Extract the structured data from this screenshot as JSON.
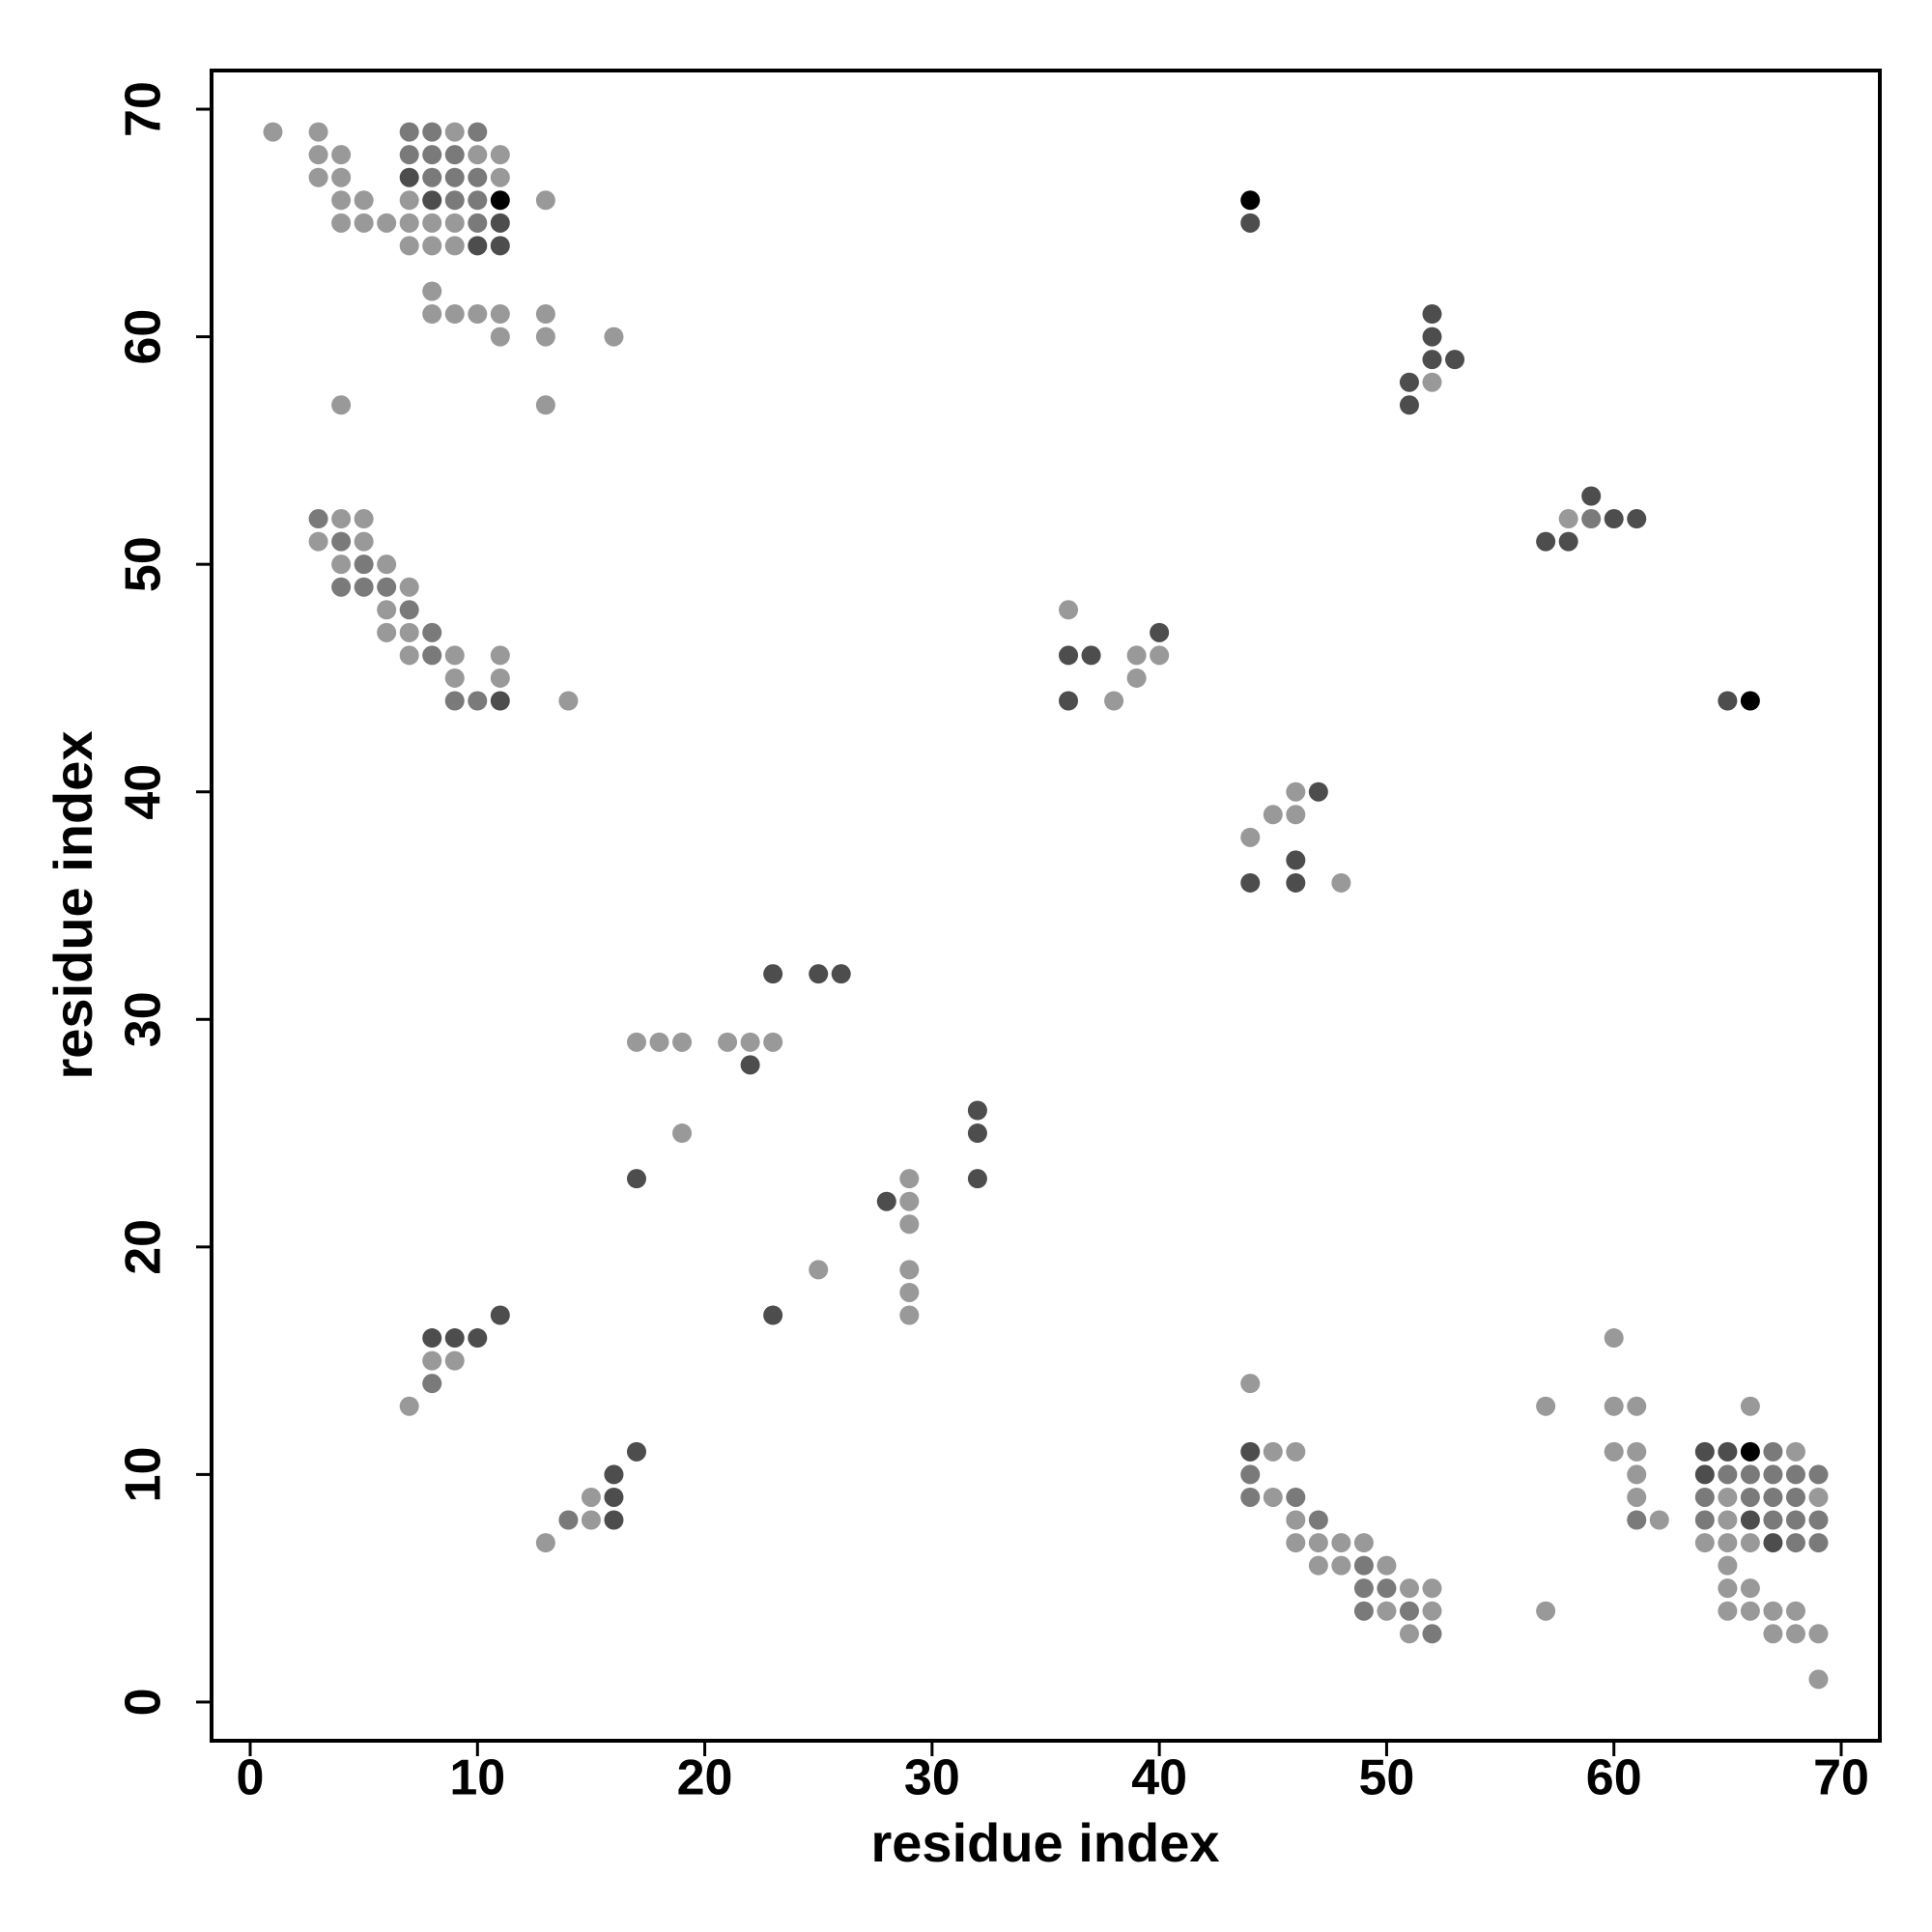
{
  "chart_data": {
    "type": "scatter",
    "xlabel": "residue index",
    "ylabel": "residue index",
    "xlim": [
      -1.7,
      71.7
    ],
    "ylim": [
      -1.7,
      71.7
    ],
    "xticks": [
      0,
      10,
      20,
      30,
      40,
      50,
      60,
      70
    ],
    "yticks": [
      0,
      10,
      20,
      30,
      40,
      50,
      60,
      70
    ],
    "x": [
      1,
      3,
      7,
      8,
      9,
      10,
      3,
      4,
      7,
      8,
      9,
      10,
      11,
      3,
      4,
      7,
      8,
      9,
      10,
      11,
      4,
      5,
      7,
      8,
      9,
      10,
      11,
      13,
      44,
      4,
      5,
      6,
      7,
      8,
      9,
      10,
      11,
      44,
      7,
      8,
      9,
      10,
      11,
      8,
      8,
      9,
      10,
      11,
      13,
      52,
      11,
      13,
      16,
      52,
      52,
      53,
      51,
      52,
      4,
      13,
      51,
      59,
      3,
      4,
      5,
      58,
      59,
      60,
      61,
      3,
      4,
      5,
      57,
      58,
      4,
      5,
      6,
      4,
      5,
      6,
      7,
      6,
      7,
      36,
      6,
      7,
      8,
      40,
      7,
      8,
      9,
      11,
      36,
      37,
      39,
      40,
      9,
      11,
      39,
      9,
      10,
      11,
      14,
      36,
      38,
      65,
      66,
      46,
      47,
      45,
      46,
      44,
      46,
      44,
      46,
      48,
      23,
      25,
      26,
      17,
      18,
      19,
      21,
      22,
      23,
      22,
      32,
      19,
      32,
      17,
      29,
      32,
      28,
      29,
      29,
      25,
      29,
      29,
      11,
      23,
      29,
      8,
      9,
      10,
      60,
      8,
      9,
      8,
      44,
      7,
      57,
      60,
      61,
      66,
      17,
      44,
      45,
      46,
      60,
      61,
      64,
      65,
      66,
      67,
      68,
      16,
      44,
      61,
      64,
      65,
      66,
      67,
      68,
      69,
      15,
      16,
      44,
      45,
      46,
      61,
      64,
      65,
      66,
      67,
      68,
      69,
      14,
      15,
      16,
      46,
      47,
      61,
      62,
      64,
      65,
      66,
      67,
      68,
      69,
      13,
      46,
      47,
      48,
      49,
      64,
      65,
      66,
      67,
      68,
      69,
      47,
      48,
      49,
      50,
      65,
      49,
      50,
      51,
      52,
      65,
      66,
      49,
      50,
      51,
      52,
      57,
      65,
      66,
      67,
      68,
      51,
      52,
      67,
      68,
      69,
      69
    ],
    "y": [
      69,
      69,
      69,
      69,
      69,
      69,
      68,
      68,
      68,
      68,
      68,
      68,
      68,
      67,
      67,
      67,
      67,
      67,
      67,
      67,
      66,
      66,
      66,
      66,
      66,
      66,
      66,
      66,
      66,
      65,
      65,
      65,
      65,
      65,
      65,
      65,
      65,
      65,
      64,
      64,
      64,
      64,
      64,
      62,
      61,
      61,
      61,
      61,
      61,
      61,
      60,
      60,
      60,
      60,
      59,
      59,
      58,
      58,
      57,
      57,
      57,
      53,
      52,
      52,
      52,
      52,
      52,
      52,
      52,
      51,
      51,
      51,
      51,
      51,
      50,
      50,
      50,
      49,
      49,
      49,
      49,
      48,
      48,
      48,
      47,
      47,
      47,
      47,
      46,
      46,
      46,
      46,
      46,
      46,
      46,
      46,
      45,
      45,
      45,
      44,
      44,
      44,
      44,
      44,
      44,
      44,
      44,
      40,
      40,
      39,
      39,
      38,
      37,
      36,
      36,
      36,
      32,
      32,
      32,
      29,
      29,
      29,
      29,
      29,
      29,
      28,
      26,
      25,
      25,
      23,
      23,
      23,
      22,
      22,
      21,
      19,
      19,
      18,
      17,
      17,
      17,
      16,
      16,
      16,
      16,
      15,
      15,
      14,
      14,
      13,
      13,
      13,
      13,
      13,
      11,
      11,
      11,
      11,
      11,
      11,
      11,
      11,
      11,
      11,
      11,
      10,
      10,
      10,
      10,
      10,
      10,
      10,
      10,
      10,
      9,
      9,
      9,
      9,
      9,
      9,
      9,
      9,
      9,
      9,
      9,
      9,
      8,
      8,
      8,
      8,
      8,
      8,
      8,
      8,
      8,
      8,
      8,
      8,
      8,
      7,
      7,
      7,
      7,
      7,
      7,
      7,
      7,
      7,
      7,
      7,
      6,
      6,
      6,
      6,
      6,
      5,
      5,
      5,
      5,
      5,
      5,
      4,
      4,
      4,
      4,
      4,
      4,
      4,
      4,
      4,
      3,
      3,
      3,
      3,
      3,
      1
    ],
    "colors": [
      "#999999",
      "#999999",
      "#7a7a7a",
      "#7a7a7a",
      "#999999",
      "#7a7a7a",
      "#999999",
      "#999999",
      "#7a7a7a",
      "#7a7a7a",
      "#7a7a7a",
      "#999999",
      "#999999",
      "#999999",
      "#999999",
      "#4d4d4d",
      "#7a7a7a",
      "#7a7a7a",
      "#7a7a7a",
      "#999999",
      "#999999",
      "#999999",
      "#999999",
      "#4d4d4d",
      "#7a7a7a",
      "#7a7a7a",
      "#000000",
      "#999999",
      "#000000",
      "#999999",
      "#999999",
      "#999999",
      "#999999",
      "#999999",
      "#999999",
      "#7a7a7a",
      "#4d4d4d",
      "#4d4d4d",
      "#999999",
      "#999999",
      "#999999",
      "#4d4d4d",
      "#4d4d4d",
      "#999999",
      "#999999",
      "#999999",
      "#999999",
      "#999999",
      "#999999",
      "#4d4d4d",
      "#999999",
      "#999999",
      "#999999",
      "#4d4d4d",
      "#4d4d4d",
      "#4d4d4d",
      "#4d4d4d",
      "#999999",
      "#999999",
      "#999999",
      "#4d4d4d",
      "#4d4d4d",
      "#7a7a7a",
      "#999999",
      "#999999",
      "#999999",
      "#7a7a7a",
      "#4d4d4d",
      "#4d4d4d",
      "#999999",
      "#7a7a7a",
      "#999999",
      "#4d4d4d",
      "#4d4d4d",
      "#999999",
      "#7a7a7a",
      "#999999",
      "#7a7a7a",
      "#7a7a7a",
      "#7a7a7a",
      "#999999",
      "#999999",
      "#7a7a7a",
      "#999999",
      "#999999",
      "#999999",
      "#7a7a7a",
      "#4d4d4d",
      "#999999",
      "#7a7a7a",
      "#999999",
      "#999999",
      "#4d4d4d",
      "#4d4d4d",
      "#999999",
      "#999999",
      "#999999",
      "#999999",
      "#999999",
      "#7a7a7a",
      "#7a7a7a",
      "#4d4d4d",
      "#999999",
      "#4d4d4d",
      "#999999",
      "#4d4d4d",
      "#000000",
      "#999999",
      "#4d4d4d",
      "#999999",
      "#999999",
      "#999999",
      "#4d4d4d",
      "#4d4d4d",
      "#4d4d4d",
      "#999999",
      "#4d4d4d",
      "#4d4d4d",
      "#4d4d4d",
      "#999999",
      "#999999",
      "#999999",
      "#999999",
      "#999999",
      "#999999",
      "#4d4d4d",
      "#4d4d4d",
      "#999999",
      "#4d4d4d",
      "#4d4d4d",
      "#999999",
      "#4d4d4d",
      "#4d4d4d",
      "#999999",
      "#999999",
      "#999999",
      "#999999",
      "#999999",
      "#4d4d4d",
      "#4d4d4d",
      "#999999",
      "#4d4d4d",
      "#4d4d4d",
      "#4d4d4d",
      "#999999",
      "#999999",
      "#999999",
      "#7a7a7a",
      "#999999",
      "#999999",
      "#999999",
      "#999999",
      "#999999",
      "#999999",
      "#4d4d4d",
      "#4d4d4d",
      "#999999",
      "#999999",
      "#999999",
      "#999999",
      "#4d4d4d",
      "#4d4d4d",
      "#000000",
      "#7a7a7a",
      "#999999",
      "#4d4d4d",
      "#7a7a7a",
      "#999999",
      "#4d4d4d",
      "#7a7a7a",
      "#7a7a7a",
      "#7a7a7a",
      "#7a7a7a",
      "#7a7a7a",
      "#999999",
      "#4d4d4d",
      "#7a7a7a",
      "#999999",
      "#7a7a7a",
      "#999999",
      "#7a7a7a",
      "#999999",
      "#7a7a7a",
      "#7a7a7a",
      "#7a7a7a",
      "#999999",
      "#7a7a7a",
      "#999999",
      "#4d4d4d",
      "#999999",
      "#7a7a7a",
      "#7a7a7a",
      "#999999",
      "#7a7a7a",
      "#999999",
      "#4d4d4d",
      "#7a7a7a",
      "#7a7a7a",
      "#7a7a7a",
      "#999999",
      "#999999",
      "#999999",
      "#999999",
      "#999999",
      "#999999",
      "#999999",
      "#999999",
      "#4d4d4d",
      "#7a7a7a",
      "#7a7a7a",
      "#999999",
      "#999999",
      "#7a7a7a",
      "#999999",
      "#999999",
      "#7a7a7a",
      "#7a7a7a",
      "#999999",
      "#999999",
      "#999999",
      "#999999",
      "#7a7a7a",
      "#999999",
      "#7a7a7a",
      "#999999",
      "#999999",
      "#999999",
      "#999999",
      "#999999",
      "#999999",
      "#999999",
      "#7a7a7a",
      "#999999",
      "#999999",
      "#999999",
      "#999999"
    ]
  }
}
